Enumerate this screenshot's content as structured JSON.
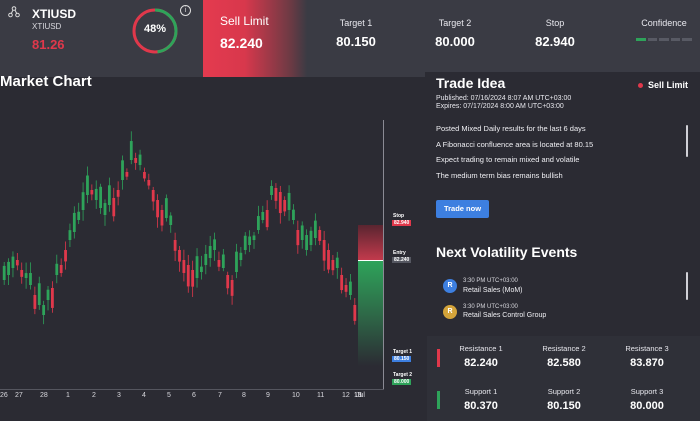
{
  "header": {
    "symbol": "XTIUSD",
    "symbol_sub": "XTIUSD",
    "price": "81.26",
    "gauge_percent": "48%",
    "gauge_fraction": 0.48,
    "info": "i",
    "sell_label": "Sell Limit",
    "sell_value": "82.240",
    "columns": [
      {
        "label": "Target 1",
        "value": "80.150"
      },
      {
        "label": "Target 2",
        "value": "80.000"
      },
      {
        "label": "Stop",
        "value": "82.940"
      }
    ],
    "confidence_label": "Confidence",
    "confidence_level": 0.2
  },
  "chart": {
    "title": "Market Chart",
    "x_labels": [
      "26",
      "27",
      "28",
      "1",
      "2",
      "3",
      "4",
      "5",
      "6",
      "7",
      "8",
      "9",
      "10",
      "11",
      "12",
      "13",
      "15",
      "Jul"
    ],
    "tags": {
      "stop_label": "Stop",
      "stop_value": "82.940",
      "entry_label": "Entry",
      "entry_value": "82.240",
      "t1_label": "Target 1",
      "t1_value": "80.150",
      "t2_label": "Target 2",
      "t2_value": "80.000"
    }
  },
  "trade_idea": {
    "title": "Trade Idea",
    "tag": "Sell Limit",
    "published": "Published: 07/16/2024 8:07 AM UTC+03:00",
    "expires": "Expires: 07/17/2024 8:00 AM UTC+03:00",
    "notes": [
      "Posted Mixed Daily results for the last 6 days",
      "A Fibonacci confluence area is located at 80.15",
      "Expect trading to remain mixed and volatile",
      "The medium term bias remains bullish"
    ],
    "button": "Trade now"
  },
  "events": {
    "title": "Next Volatility Events",
    "items": [
      {
        "icon": "R",
        "time": "3:30 PM UTC+03:00",
        "name": "Retail Sales (MoM)",
        "color": "#3d7fe0"
      },
      {
        "icon": "R",
        "time": "3:30 PM UTC+03:00",
        "name": "Retail Sales Control Group",
        "color": "#d4a43a"
      }
    ]
  },
  "levels": {
    "resistance": [
      {
        "label": "Resistance 1",
        "value": "82.240"
      },
      {
        "label": "Resistance 2",
        "value": "82.580"
      },
      {
        "label": "Resistance 3",
        "value": "83.870"
      }
    ],
    "support": [
      {
        "label": "Support 1",
        "value": "80.370"
      },
      {
        "label": "Support 2",
        "value": "80.150"
      },
      {
        "label": "Support 3",
        "value": "80.000"
      }
    ]
  },
  "colors": {
    "accent_red": "#e0384b",
    "accent_green": "#2ea35a",
    "accent_blue": "#3d7fe0"
  }
}
